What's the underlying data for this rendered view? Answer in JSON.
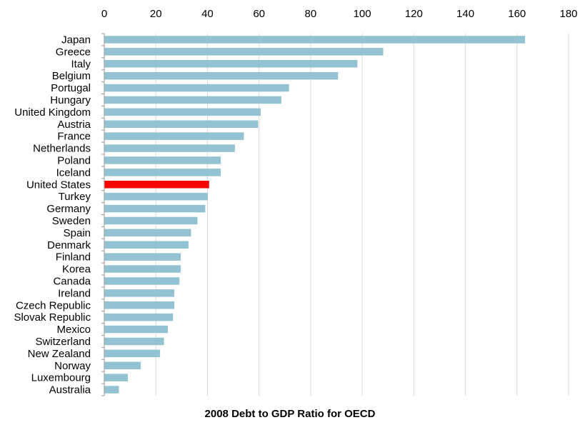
{
  "chart_data": {
    "type": "bar",
    "orientation": "horizontal",
    "title": "2008 Debt to GDP Ratio for OECD",
    "xlim": [
      0,
      180
    ],
    "xticks": [
      0,
      20,
      40,
      60,
      80,
      100,
      120,
      140,
      160,
      180
    ],
    "xaxis_position": "top",
    "grid": "vertical",
    "colors": {
      "bar": "#93c3d3",
      "highlight": "#ff0000",
      "grid": "#d9d9d9"
    },
    "highlight": "United States",
    "categories": [
      "Japan",
      "Greece",
      "Italy",
      "Belgium",
      "Portugal",
      "Hungary",
      "United Kingdom",
      "Austria",
      "France",
      "Netherlands",
      "Poland",
      "Iceland",
      "United States",
      "Turkey",
      "Germany",
      "Sweden",
      "Spain",
      "Denmark",
      "Finland",
      "Korea",
      "Canada",
      "Ireland",
      "Czech Republic",
      "Slovak Republic",
      "Mexico",
      "Switzerland",
      "New Zealand",
      "Norway",
      "Luxembourg",
      "Australia"
    ],
    "values": [
      163,
      108,
      98,
      90.5,
      71.5,
      68.5,
      60.5,
      59.5,
      54,
      50.5,
      45,
      45,
      40.5,
      40,
      39,
      36,
      33.5,
      32.5,
      29.5,
      29.5,
      29,
      27,
      27,
      26.5,
      24.5,
      23,
      21.5,
      14,
      9,
      5.5
    ]
  }
}
